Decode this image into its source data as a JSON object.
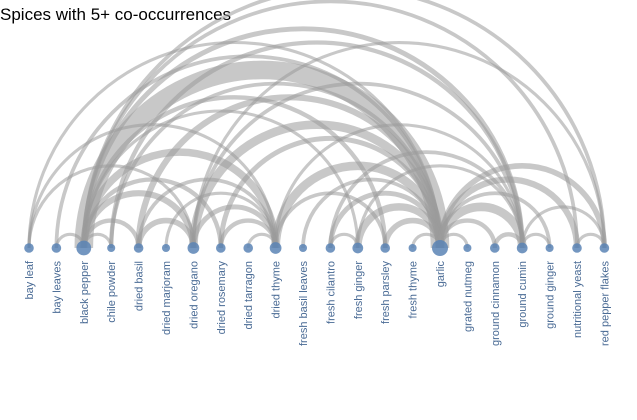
{
  "chart_data": {
    "type": "arc",
    "title": "Spices with 5+ co-occurrences",
    "colors": {
      "node": "#5b84b5",
      "link": "#9a9a9a",
      "label": "#4a6b95"
    },
    "nodes": [
      {
        "label": "bay leaf",
        "weight": 1
      },
      {
        "label": "bay leaves",
        "weight": 1
      },
      {
        "label": "black pepper",
        "weight": 4
      },
      {
        "label": "chile powder",
        "weight": 0.5
      },
      {
        "label": "dried basil",
        "weight": 1
      },
      {
        "label": "dried marjoram",
        "weight": 0.5
      },
      {
        "label": "dried oregano",
        "weight": 2
      },
      {
        "label": "dried rosemary",
        "weight": 1
      },
      {
        "label": "dried tarragon",
        "weight": 1
      },
      {
        "label": "dried thyme",
        "weight": 2
      },
      {
        "label": "fresh basil leaves",
        "weight": 0.5
      },
      {
        "label": "fresh cilantro",
        "weight": 1
      },
      {
        "label": "fresh ginger",
        "weight": 1.5
      },
      {
        "label": "fresh parsley",
        "weight": 1
      },
      {
        "label": "fresh thyme",
        "weight": 0.5
      },
      {
        "label": "garlic",
        "weight": 5
      },
      {
        "label": "grated nutmeg",
        "weight": 0.5
      },
      {
        "label": "ground cinnamon",
        "weight": 1
      },
      {
        "label": "ground cumin",
        "weight": 1.5
      },
      {
        "label": "ground ginger",
        "weight": 0.5
      },
      {
        "label": "nutritional yeast",
        "weight": 1
      },
      {
        "label": "red pepper flakes",
        "weight": 1
      }
    ],
    "links": [
      {
        "source": "bay leaf",
        "target": "dried thyme",
        "value": 5
      },
      {
        "source": "bay leaf",
        "target": "garlic",
        "value": 5
      },
      {
        "source": "bay leaves",
        "target": "black pepper",
        "value": 5
      },
      {
        "source": "bay leaves",
        "target": "garlic",
        "value": 6
      },
      {
        "source": "black pepper",
        "target": "chile powder",
        "value": 5
      },
      {
        "source": "black pepper",
        "target": "dried basil",
        "value": 7
      },
      {
        "source": "black pepper",
        "target": "dried oregano",
        "value": 10
      },
      {
        "source": "black pepper",
        "target": "dried rosemary",
        "value": 7
      },
      {
        "source": "black pepper",
        "target": "dried thyme",
        "value": 12
      },
      {
        "source": "black pepper",
        "target": "fresh parsley",
        "value": 7
      },
      {
        "source": "black pepper",
        "target": "garlic",
        "value": 30
      },
      {
        "source": "black pepper",
        "target": "ground cumin",
        "value": 8
      },
      {
        "source": "black pepper",
        "target": "nutritional yeast",
        "value": 6
      },
      {
        "source": "black pepper",
        "target": "red pepper flakes",
        "value": 6
      },
      {
        "source": "black pepper",
        "target": "fresh ginger",
        "value": 5
      },
      {
        "source": "chile powder",
        "target": "garlic",
        "value": 6
      },
      {
        "source": "chile powder",
        "target": "ground cumin",
        "value": 7
      },
      {
        "source": "dried basil",
        "target": "dried oregano",
        "value": 9
      },
      {
        "source": "dried basil",
        "target": "dried thyme",
        "value": 6
      },
      {
        "source": "dried basil",
        "target": "garlic",
        "value": 10
      },
      {
        "source": "dried marjoram",
        "target": "dried thyme",
        "value": 5
      },
      {
        "source": "dried oregano",
        "target": "dried thyme",
        "value": 8
      },
      {
        "source": "dried oregano",
        "target": "garlic",
        "value": 14
      },
      {
        "source": "dried oregano",
        "target": "ground cumin",
        "value": 6
      },
      {
        "source": "dried oregano",
        "target": "red pepper flakes",
        "value": 5
      },
      {
        "source": "dried rosemary",
        "target": "dried thyme",
        "value": 7
      },
      {
        "source": "dried rosemary",
        "target": "garlic",
        "value": 8
      },
      {
        "source": "dried tarragon",
        "target": "dried thyme",
        "value": 5
      },
      {
        "source": "dried thyme",
        "target": "garlic",
        "value": 14
      },
      {
        "source": "dried thyme",
        "target": "fresh parsley",
        "value": 6
      },
      {
        "source": "dried thyme",
        "target": "ground cumin",
        "value": 5
      },
      {
        "source": "fresh basil leaves",
        "target": "garlic",
        "value": 6
      },
      {
        "source": "fresh cilantro",
        "target": "garlic",
        "value": 8
      },
      {
        "source": "fresh cilantro",
        "target": "fresh ginger",
        "value": 5
      },
      {
        "source": "fresh cilantro",
        "target": "ground cumin",
        "value": 6
      },
      {
        "source": "fresh ginger",
        "target": "garlic",
        "value": 12
      },
      {
        "source": "fresh ginger",
        "target": "ground cumin",
        "value": 5
      },
      {
        "source": "fresh parsley",
        "target": "garlic",
        "value": 9
      },
      {
        "source": "fresh thyme",
        "target": "garlic",
        "value": 5
      },
      {
        "source": "garlic",
        "target": "grated nutmeg",
        "value": 5
      },
      {
        "source": "garlic",
        "target": "ground cinnamon",
        "value": 7
      },
      {
        "source": "garlic",
        "target": "ground cumin",
        "value": 14
      },
      {
        "source": "garlic",
        "target": "ground ginger",
        "value": 6
      },
      {
        "source": "garlic",
        "target": "nutritional yeast",
        "value": 10
      },
      {
        "source": "garlic",
        "target": "red pepper flakes",
        "value": 9
      },
      {
        "source": "ground cinnamon",
        "target": "ground cumin",
        "value": 7
      },
      {
        "source": "ground cumin",
        "target": "ground ginger",
        "value": 5
      },
      {
        "source": "ground cumin",
        "target": "red pepper flakes",
        "value": 5
      },
      {
        "source": "nutritional yeast",
        "target": "red pepper flakes",
        "value": 5
      },
      {
        "source": "bay leaf",
        "target": "dried oregano",
        "value": 5
      }
    ]
  }
}
